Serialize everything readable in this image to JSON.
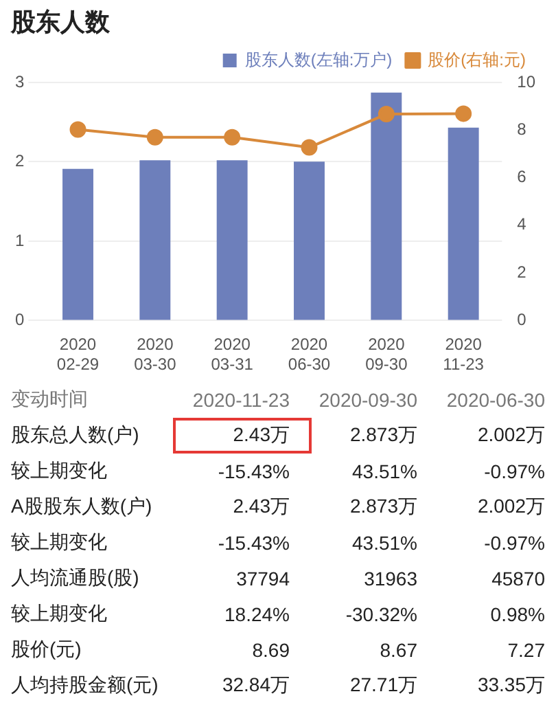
{
  "chart_data": {
    "type": "bar",
    "title": "股东人数",
    "categories": [
      "2020\n02-29",
      "2020\n03-30",
      "2020\n03-31",
      "2020\n06-30",
      "2020\n09-30",
      "2020\n11-23"
    ],
    "series": [
      {
        "name": "股东人数(左轴:万户)",
        "color": "#6d7fbb",
        "values": [
          1.91,
          2.02,
          2.02,
          2.002,
          2.873,
          2.43
        ]
      },
      {
        "name": "股价(右轴:元)",
        "type": "line",
        "axis": "y2",
        "color": "#d8893a",
        "values": [
          8.02,
          7.7,
          7.7,
          7.27,
          8.67,
          8.69
        ]
      }
    ],
    "ylim": [
      0,
      3
    ],
    "yticks": [
      0,
      1,
      2,
      3
    ],
    "y2lim": [
      0,
      10
    ],
    "y2ticks": [
      0,
      2,
      4,
      6,
      8,
      10
    ],
    "grid": "y",
    "legend": "top right",
    "marker": "circle",
    "annotations": [
      "变动时间",
      "2020-11-23",
      "2020-09-30",
      "2020-06-30",
      "股东总人数(户)",
      "2.43万",
      "2.873万",
      "2.002万",
      "较上期变化",
      "-15.43%",
      "43.51%",
      "-0.97%",
      "A股股东人数(户)",
      "2.43万",
      "2.873万",
      "2.002万",
      "较上期变化",
      "-15.43%",
      "43.51%",
      "-0.97%",
      "人均流通股(股)",
      "37794",
      "31963",
      "45870",
      "较上期变化",
      "18.24%",
      "-30.32%",
      "0.98%",
      "股价(元)",
      "8.69",
      "8.67",
      "7.27",
      "人均持股金额(元)",
      "32.84万",
      "27.71万",
      "33.35万"
    ]
  }
}
